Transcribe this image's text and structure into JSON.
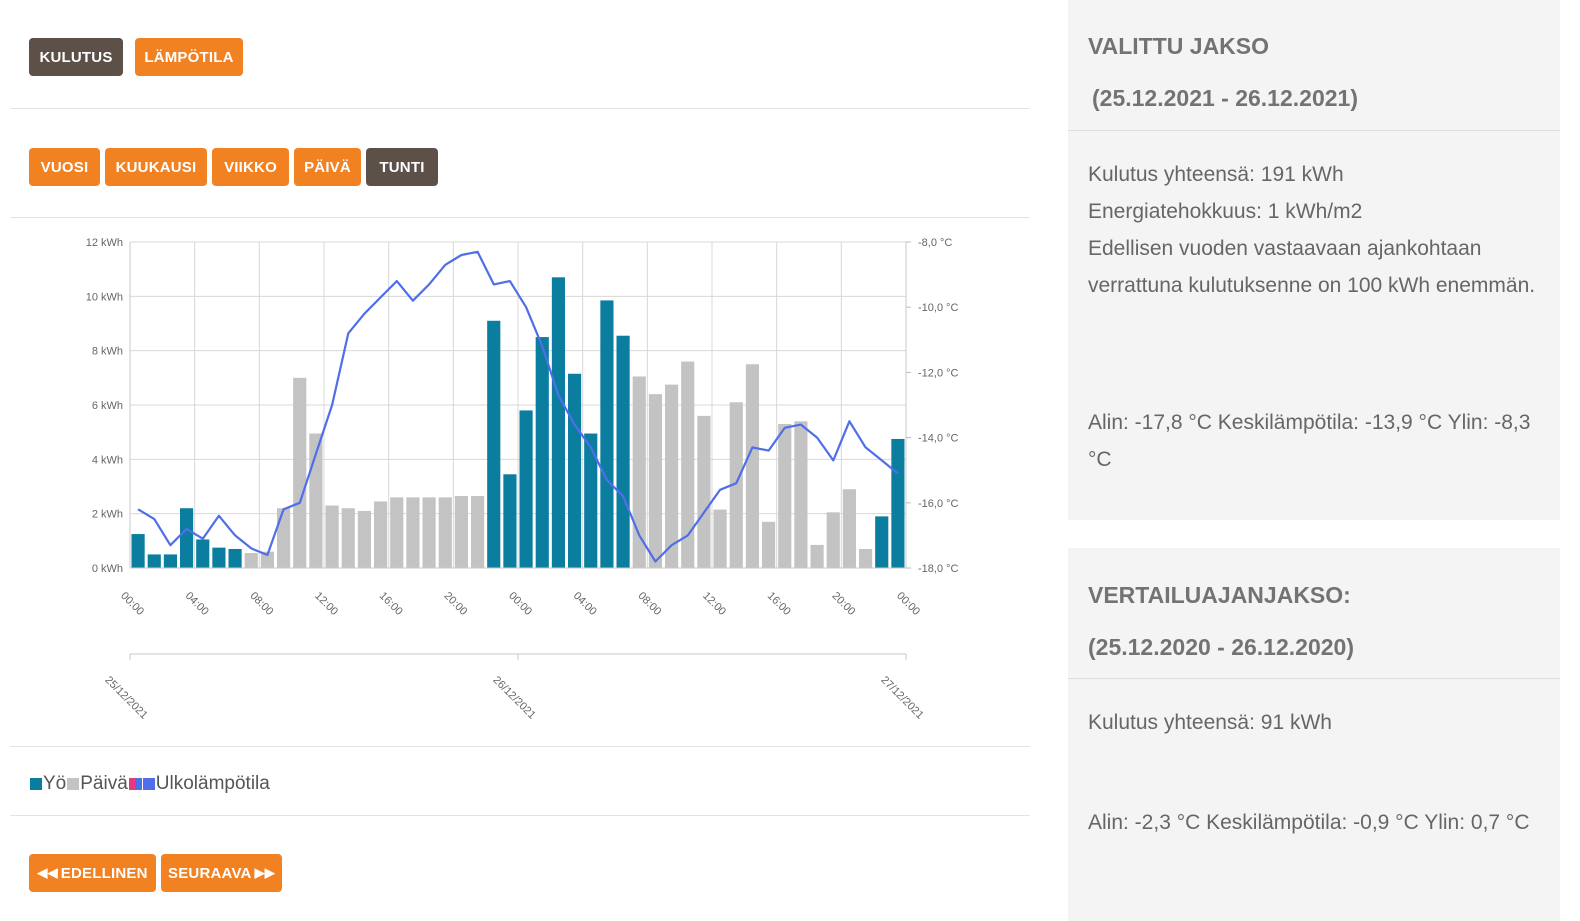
{
  "mode_buttons": [
    {
      "label": "KULUTUS",
      "active": true
    },
    {
      "label": "LÄMPÖTILA",
      "active": false
    }
  ],
  "period_buttons": [
    {
      "label": "VUOSI",
      "active": false
    },
    {
      "label": "KUUKAUSI",
      "active": false
    },
    {
      "label": "VIIKKO",
      "active": false
    },
    {
      "label": "PÄIVÄ",
      "active": false
    },
    {
      "label": "TUNTI",
      "active": true
    }
  ],
  "nav": {
    "previous_label": "EDELLINEN",
    "next_label": "SEURAAVA"
  },
  "legend": {
    "items": [
      "Yö",
      "Päivä",
      "Ulkolämpötila"
    ]
  },
  "colors": {
    "accent": "#f28121",
    "dark": "#5d5049",
    "night": "#0b7ea0",
    "day": "#c3c3c3",
    "temp": "#4f6ee8",
    "temp_swatch_pink": "#e4397f"
  },
  "selected_period": {
    "title": "VALITTU JAKSO",
    "range": "(25.12.2021 - 26.12.2021)",
    "lines": [
      "Kulutus yhteensä: 191 kWh",
      "Energiatehokkuus: 1 kWh/m2",
      "Edellisen vuoden vastaavaan ajankohtaan verrattuna kulutuksenne on 100 kWh enemmän."
    ],
    "temps": "Alin: -17,8 °C Keskilämpötila: -13,9 °C Ylin: -8,3 °C"
  },
  "comparison_period": {
    "title": "VERTAILUAJANJAKSO:",
    "range": "(25.12.2020 - 26.12.2020)",
    "lines": [
      "Kulutus yhteensä: 91 kWh"
    ],
    "temps": "Alin: -2,3 °C Keskilämpötila: -0,9 °C Ylin: 0,7 °C"
  },
  "chart_data": {
    "type": "bar",
    "left_axis": {
      "ticks": [
        "0 kWh",
        "2 kWh",
        "4 kWh",
        "6 kWh",
        "8 kWh",
        "10 kWh",
        "12 kWh"
      ],
      "ylim": [
        0,
        12
      ]
    },
    "right_axis": {
      "ticks": [
        "-18,0 °C",
        "-16,0 °C",
        "-14,0 °C",
        "-12,0 °C",
        "-10,0 °C",
        "-8,0 °C"
      ],
      "ylim": [
        -18,
        -8
      ]
    },
    "x_ticks": [
      "00:00",
      "04:00",
      "08:00",
      "12:00",
      "16:00",
      "20:00",
      "00:00",
      "04:00",
      "08:00",
      "12:00",
      "16:00",
      "20:00",
      "00:00"
    ],
    "date_ticks": [
      "25/12/2021",
      "26/12/2021",
      "27/12/2021"
    ],
    "grid": true,
    "series": [
      {
        "name": "Yö",
        "type": "bar",
        "values": [
          1.25,
          0.5,
          0.5,
          2.2,
          1.05,
          0.75,
          0.7,
          null,
          null,
          null,
          null,
          null,
          null,
          null,
          null,
          null,
          null,
          null,
          null,
          null,
          null,
          null,
          9.1,
          3.45,
          5.8,
          8.5,
          10.7,
          7.15,
          4.95,
          9.85,
          8.55,
          null,
          null,
          null,
          null,
          null,
          null,
          null,
          null,
          null,
          null,
          null,
          null,
          null,
          null,
          null,
          1.9,
          4.75
        ]
      },
      {
        "name": "Päivä",
        "type": "bar",
        "values": [
          null,
          null,
          null,
          null,
          null,
          null,
          null,
          0.55,
          0.6,
          2.2,
          7.0,
          4.95,
          2.3,
          2.2,
          2.1,
          2.45,
          2.6,
          2.6,
          2.6,
          2.6,
          2.65,
          2.65,
          null,
          null,
          null,
          null,
          null,
          null,
          null,
          null,
          null,
          7.05,
          6.4,
          6.75,
          7.6,
          5.6,
          2.15,
          6.1,
          7.5,
          1.7,
          5.3,
          5.4,
          0.85,
          2.05,
          2.9,
          0.7,
          null,
          null
        ]
      },
      {
        "name": "Ulkolämpötila",
        "type": "line",
        "values": [
          -16.2,
          -16.5,
          -17.3,
          -16.8,
          -17.1,
          -16.4,
          -17.0,
          -17.4,
          -17.6,
          -16.2,
          -16.0,
          -14.5,
          -13.0,
          -10.8,
          -10.2,
          -9.7,
          -9.2,
          -9.8,
          -9.3,
          -8.7,
          -8.4,
          -8.3,
          -9.3,
          -9.2,
          -10.0,
          -11.2,
          -12.7,
          -13.6,
          -14.3,
          -15.3,
          -15.8,
          -17.0,
          -17.8,
          -17.3,
          -17.0,
          -16.3,
          -15.6,
          -15.4,
          -14.3,
          -14.4,
          -13.7,
          -13.6,
          -14.0,
          -14.7,
          -13.5,
          -14.3,
          -14.7,
          -15.1
        ]
      }
    ]
  }
}
